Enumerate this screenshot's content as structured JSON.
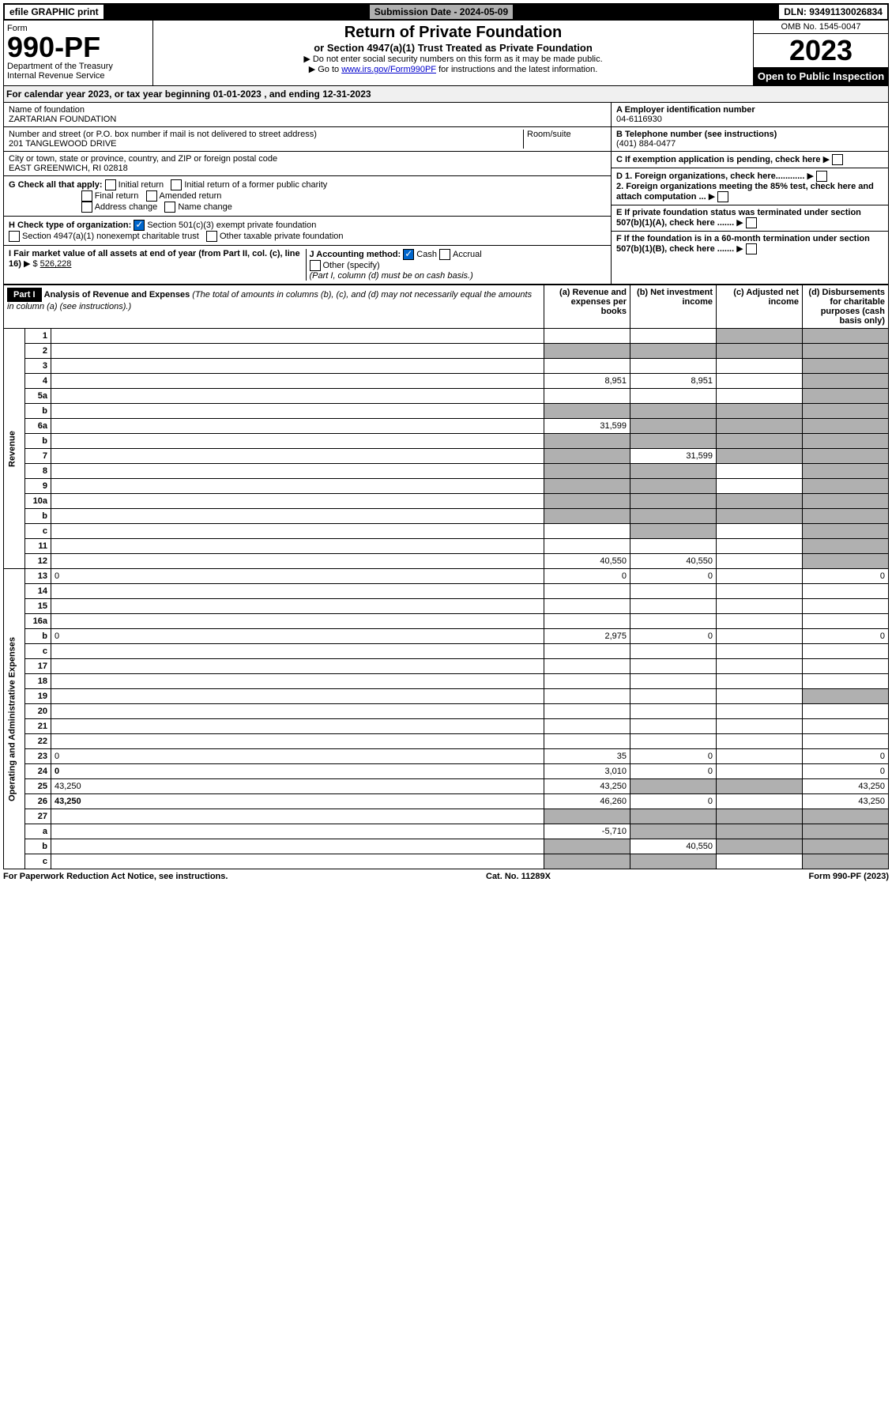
{
  "topbar": {
    "efile": "efile GRAPHIC print",
    "submission": "Submission Date - 2024-05-09",
    "dln": "DLN: 93491130026834"
  },
  "header": {
    "form_label": "Form",
    "form_number": "990-PF",
    "dept": "Department of the Treasury",
    "irs": "Internal Revenue Service",
    "title": "Return of Private Foundation",
    "subtitle": "or Section 4947(a)(1) Trust Treated as Private Foundation",
    "instr1": "▶ Do not enter social security numbers on this form as it may be made public.",
    "instr2_pre": "▶ Go to ",
    "instr2_link": "www.irs.gov/Form990PF",
    "instr2_post": " for instructions and the latest information.",
    "omb": "OMB No. 1545-0047",
    "year": "2023",
    "inspection": "Open to Public Inspection"
  },
  "calyear": {
    "text_pre": "For calendar year 2023, or tax year beginning ",
    "begin": "01-01-2023",
    "mid": " , and ending ",
    "end": "12-31-2023"
  },
  "entity": {
    "name_label": "Name of foundation",
    "name": "ZARTARIAN FOUNDATION",
    "addr_label": "Number and street (or P.O. box number if mail is not delivered to street address)",
    "addr": "201 TANGLEWOOD DRIVE",
    "room_label": "Room/suite",
    "city_label": "City or town, state or province, country, and ZIP or foreign postal code",
    "city": "EAST GREENWICH, RI  02818",
    "a_label": "A Employer identification number",
    "a_val": "04-6116930",
    "b_label": "B Telephone number (see instructions)",
    "b_val": "(401) 884-0477",
    "c_label": "C If exemption application is pending, check here",
    "d1": "D 1. Foreign organizations, check here............",
    "d2": "2. Foreign organizations meeting the 85% test, check here and attach computation ...",
    "e": "E  If private foundation status was terminated under section 507(b)(1)(A), check here .......",
    "f": "F  If the foundation is in a 60-month termination under section 507(b)(1)(B), check here .......",
    "g_label": "G Check all that apply:",
    "g_opts": [
      "Initial return",
      "Initial return of a former public charity",
      "Final return",
      "Amended return",
      "Address change",
      "Name change"
    ],
    "h_label": "H Check type of organization:",
    "h1": "Section 501(c)(3) exempt private foundation",
    "h2": "Section 4947(a)(1) nonexempt charitable trust",
    "h3": "Other taxable private foundation",
    "i_label": "I Fair market value of all assets at end of year (from Part II, col. (c), line 16)",
    "i_val": "526,228",
    "j_label": "J Accounting method:",
    "j_cash": "Cash",
    "j_accrual": "Accrual",
    "j_other": "Other (specify)",
    "j_note": "(Part I, column (d) must be on cash basis.)"
  },
  "part1": {
    "label": "Part I",
    "title": "Analysis of Revenue and Expenses",
    "title_note": "(The total of amounts in columns (b), (c), and (d) may not necessarily equal the amounts in column (a) (see instructions).)",
    "col_a": "(a) Revenue and expenses per books",
    "col_b": "(b) Net investment income",
    "col_c": "(c) Adjusted net income",
    "col_d": "(d) Disbursements for charitable purposes (cash basis only)"
  },
  "sidelabels": {
    "revenue": "Revenue",
    "opex": "Operating and Administrative Expenses"
  },
  "rows": [
    {
      "n": "1",
      "d": "",
      "a": "",
      "b": "",
      "c": "",
      "shade_c": true,
      "shade_d": true
    },
    {
      "n": "2",
      "d": "",
      "a": "",
      "b": "",
      "c": "",
      "shade_a": true,
      "shade_b": true,
      "shade_c": true,
      "shade_d": true,
      "bold_not": true
    },
    {
      "n": "3",
      "d": "",
      "a": "",
      "b": "",
      "c": "",
      "shade_d": true
    },
    {
      "n": "4",
      "d": "",
      "a": "8,951",
      "b": "8,951",
      "c": "",
      "shade_d": true
    },
    {
      "n": "5a",
      "d": "",
      "a": "",
      "b": "",
      "c": "",
      "shade_d": true
    },
    {
      "n": "b",
      "d": "",
      "a": "",
      "b": "",
      "c": "",
      "shade_a": true,
      "shade_b": true,
      "shade_c": true,
      "shade_d": true
    },
    {
      "n": "6a",
      "d": "",
      "a": "31,599",
      "b": "",
      "c": "",
      "shade_b": true,
      "shade_c": true,
      "shade_d": true
    },
    {
      "n": "b",
      "d": "",
      "a": "",
      "b": "",
      "c": "",
      "shade_a": true,
      "shade_b": true,
      "shade_c": true,
      "shade_d": true
    },
    {
      "n": "7",
      "d": "",
      "a": "",
      "b": "31,599",
      "c": "",
      "shade_a": true,
      "shade_c": true,
      "shade_d": true
    },
    {
      "n": "8",
      "d": "",
      "a": "",
      "b": "",
      "c": "",
      "shade_a": true,
      "shade_b": true,
      "shade_d": true
    },
    {
      "n": "9",
      "d": "",
      "a": "",
      "b": "",
      "c": "",
      "shade_a": true,
      "shade_b": true,
      "shade_d": true
    },
    {
      "n": "10a",
      "d": "",
      "a": "",
      "b": "",
      "c": "",
      "shade_a": true,
      "shade_b": true,
      "shade_c": true,
      "shade_d": true
    },
    {
      "n": "b",
      "d": "",
      "a": "",
      "b": "",
      "c": "",
      "shade_a": true,
      "shade_b": true,
      "shade_c": true,
      "shade_d": true
    },
    {
      "n": "c",
      "d": "",
      "a": "",
      "b": "",
      "c": "",
      "shade_b": true,
      "shade_d": true
    },
    {
      "n": "11",
      "d": "",
      "a": "",
      "b": "",
      "c": "",
      "shade_d": true
    },
    {
      "n": "12",
      "d": "",
      "a": "40,550",
      "b": "40,550",
      "c": "",
      "bold": true,
      "shade_d": true
    },
    {
      "n": "13",
      "d": "0",
      "a": "0",
      "b": "0",
      "c": ""
    },
    {
      "n": "14",
      "d": "",
      "a": "",
      "b": "",
      "c": ""
    },
    {
      "n": "15",
      "d": "",
      "a": "",
      "b": "",
      "c": ""
    },
    {
      "n": "16a",
      "d": "",
      "a": "",
      "b": "",
      "c": ""
    },
    {
      "n": "b",
      "d": "0",
      "a": "2,975",
      "b": "0",
      "c": ""
    },
    {
      "n": "c",
      "d": "",
      "a": "",
      "b": "",
      "c": ""
    },
    {
      "n": "17",
      "d": "",
      "a": "",
      "b": "",
      "c": ""
    },
    {
      "n": "18",
      "d": "",
      "a": "",
      "b": "",
      "c": ""
    },
    {
      "n": "19",
      "d": "",
      "a": "",
      "b": "",
      "c": "",
      "shade_d": true
    },
    {
      "n": "20",
      "d": "",
      "a": "",
      "b": "",
      "c": ""
    },
    {
      "n": "21",
      "d": "",
      "a": "",
      "b": "",
      "c": ""
    },
    {
      "n": "22",
      "d": "",
      "a": "",
      "b": "",
      "c": ""
    },
    {
      "n": "23",
      "d": "0",
      "a": "35",
      "b": "0",
      "c": ""
    },
    {
      "n": "24",
      "d": "0",
      "a": "3,010",
      "b": "0",
      "c": "",
      "bold": true
    },
    {
      "n": "25",
      "d": "43,250",
      "a": "43,250",
      "b": "",
      "c": "",
      "shade_b": true,
      "shade_c": true
    },
    {
      "n": "26",
      "d": "43,250",
      "a": "46,260",
      "b": "0",
      "c": "",
      "bold": true
    },
    {
      "n": "27",
      "d": "",
      "a": "",
      "b": "",
      "c": "",
      "shade_a": true,
      "shade_b": true,
      "shade_c": true,
      "shade_d": true
    },
    {
      "n": "a",
      "d": "",
      "a": "-5,710",
      "b": "",
      "c": "",
      "bold": true,
      "shade_b": true,
      "shade_c": true,
      "shade_d": true
    },
    {
      "n": "b",
      "d": "",
      "a": "",
      "b": "40,550",
      "c": "",
      "bold": true,
      "shade_a": true,
      "shade_c": true,
      "shade_d": true
    },
    {
      "n": "c",
      "d": "",
      "a": "",
      "b": "",
      "c": "",
      "bold": true,
      "shade_a": true,
      "shade_b": true,
      "shade_d": true
    }
  ],
  "footer": {
    "left": "For Paperwork Reduction Act Notice, see instructions.",
    "mid": "Cat. No. 11289X",
    "right": "Form 990-PF (2023)"
  }
}
